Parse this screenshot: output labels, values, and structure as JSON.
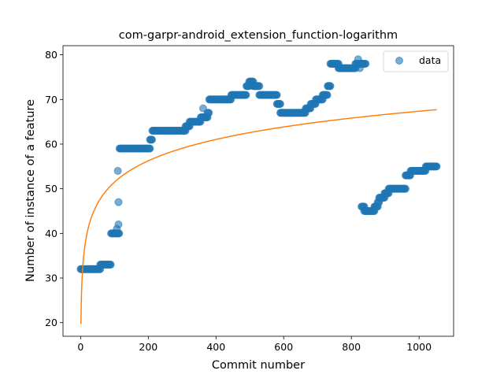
{
  "chart_data": {
    "type": "scatter",
    "title": "com-garpr-android_extension_function-logarithm",
    "xlabel": "Commit number",
    "ylabel": "Number of instance of a feature",
    "xlim": [
      -52,
      1102
    ],
    "ylim": [
      16.95,
      82.05
    ],
    "xticks": [
      0,
      200,
      400,
      600,
      800,
      1000
    ],
    "yticks": [
      20,
      30,
      40,
      50,
      60,
      70,
      80
    ],
    "grid": false,
    "legend": {
      "placement": "top-right",
      "entries": [
        "data"
      ]
    },
    "colors": {
      "data": "#1f77b4",
      "fit": "#ff7f0e"
    },
    "series": [
      {
        "name": "data",
        "kind": "scatter",
        "segments": [
          [
            0,
            38,
            32
          ],
          [
            38,
            58,
            32
          ],
          [
            58,
            65,
            33
          ],
          [
            65,
            90,
            33
          ],
          [
            90,
            108,
            40
          ],
          [
            108,
            115,
            40
          ],
          [
            115,
            205,
            59
          ],
          [
            205,
            212,
            61
          ],
          [
            212,
            310,
            63
          ],
          [
            310,
            322,
            64
          ],
          [
            322,
            355,
            65
          ],
          [
            355,
            375,
            66
          ],
          [
            375,
            380,
            67
          ],
          [
            380,
            445,
            70
          ],
          [
            445,
            490,
            71
          ],
          [
            490,
            498,
            73
          ],
          [
            498,
            510,
            74
          ],
          [
            510,
            528,
            73
          ],
          [
            528,
            580,
            71
          ],
          [
            580,
            590,
            69
          ],
          [
            590,
            665,
            67
          ],
          [
            665,
            680,
            68
          ],
          [
            680,
            695,
            69
          ],
          [
            695,
            715,
            70
          ],
          [
            715,
            730,
            71
          ],
          [
            730,
            738,
            73
          ],
          [
            738,
            762,
            78
          ],
          [
            762,
            812,
            77
          ],
          [
            812,
            830,
            78
          ],
          [
            830,
            842,
            78
          ],
          [
            830,
            838,
            46
          ],
          [
            838,
            868,
            45
          ],
          [
            868,
            878,
            46
          ],
          [
            878,
            882,
            47
          ],
          [
            882,
            898,
            48
          ],
          [
            898,
            910,
            49
          ],
          [
            910,
            960,
            50
          ],
          [
            960,
            975,
            53
          ],
          [
            975,
            1020,
            54
          ],
          [
            1020,
            1052,
            55
          ]
        ],
        "outliers": [
          [
            110,
            54
          ],
          [
            112,
            47
          ],
          [
            112,
            42
          ],
          [
            107,
            41
          ],
          [
            362,
            68
          ],
          [
            820,
            79
          ],
          [
            825,
            77
          ]
        ]
      },
      {
        "name": "",
        "kind": "line",
        "model": "a + b*ln(x)",
        "params": {
          "a": 19.7,
          "b": 6.9
        },
        "x_range": [
          1,
          1052
        ]
      }
    ]
  }
}
